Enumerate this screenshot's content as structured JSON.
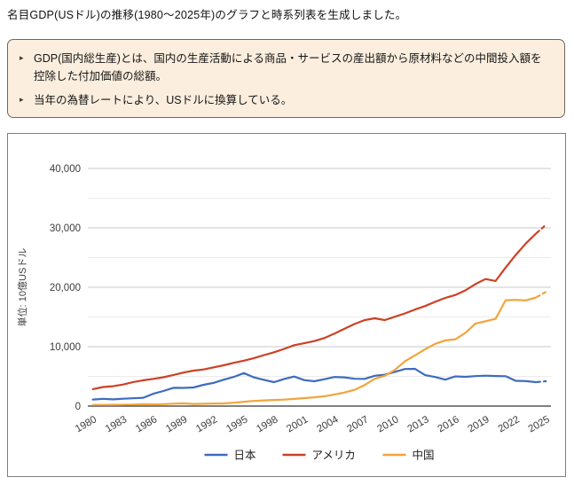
{
  "page": {
    "message": "名目GDP(USドル)の推移(1980〜2025年)のグラフと時系列表を生成しました。"
  },
  "callout": {
    "bullet_glyph": "▸",
    "items": [
      "GDP(国内総生産)とは、国内の生産活動による商品・サービスの産出額から原材料などの中間投入額を控除した付加価値の総額。",
      "当年の為替レートにより、USドルに換算している。"
    ],
    "background_color": "#FBEEDE",
    "border_color": "#6E675A"
  },
  "chart_data": {
    "type": "line",
    "title": "",
    "xlabel": "",
    "ylabel": "単位: 10億USドル",
    "ylim": [
      0,
      40000
    ],
    "y_ticks": [
      0,
      10000,
      20000,
      30000,
      40000
    ],
    "y_tick_labels": [
      "0",
      "10,000",
      "20,000",
      "30,000",
      "40,000"
    ],
    "minor_grid_step": 5000,
    "grid": true,
    "legend_position": "bottom",
    "last_segment_dashed": true,
    "x": [
      1980,
      1981,
      1982,
      1983,
      1984,
      1985,
      1986,
      1987,
      1988,
      1989,
      1990,
      1991,
      1992,
      1993,
      1994,
      1995,
      1996,
      1997,
      1998,
      1999,
      2000,
      2001,
      2002,
      2003,
      2004,
      2005,
      2006,
      2007,
      2008,
      2009,
      2010,
      2011,
      2012,
      2013,
      2014,
      2015,
      2016,
      2017,
      2018,
      2019,
      2020,
      2021,
      2022,
      2023,
      2024,
      2025
    ],
    "x_tick_labels": [
      "1980",
      "1983",
      "1986",
      "1989",
      "1992",
      "1995",
      "1998",
      "2001",
      "2004",
      "2007",
      "2010",
      "2013",
      "2016",
      "2019",
      "2022",
      "2025"
    ],
    "series": [
      {
        "key": "japan",
        "name": "日本",
        "color": "#3D6BBF",
        "values": [
          1105,
          1219,
          1134,
          1243,
          1318,
          1398,
          2079,
          2533,
          3071,
          3054,
          3133,
          3584,
          3908,
          4454,
          4907,
          5546,
          4834,
          4415,
          4033,
          4562,
          4968,
          4374,
          4182,
          4519,
          4893,
          4831,
          4601,
          4579,
          5106,
          5289,
          5759,
          6233,
          6272,
          5212,
          4897,
          4444,
          5004,
          4931,
          5041,
          5118,
          5055,
          5034,
          4256,
          4213,
          4026,
          4186
        ]
      },
      {
        "key": "america",
        "name": "アメリカ",
        "color": "#CC4125",
        "values": [
          2857,
          3207,
          3344,
          3634,
          4038,
          4339,
          4580,
          4855,
          5236,
          5642,
          5963,
          6158,
          6520,
          6859,
          7287,
          7640,
          8073,
          8578,
          9063,
          9631,
          10251,
          10582,
          10936,
          11458,
          12214,
          13037,
          13816,
          14474,
          14770,
          14478,
          15049,
          15600,
          16254,
          16843,
          17551,
          18206,
          18695,
          19477,
          20533,
          21381,
          21060,
          23315,
          25440,
          27361,
          29017,
          30507
        ]
      },
      {
        "key": "china",
        "name": "中国",
        "color": "#F2A43C",
        "values": [
          191,
          196,
          205,
          231,
          260,
          310,
          301,
          327,
          408,
          456,
          361,
          383,
          427,
          445,
          564,
          734,
          864,
          961,
          1029,
          1094,
          1211,
          1339,
          1471,
          1660,
          1955,
          2286,
          2752,
          3550,
          4594,
          5102,
          6087,
          7552,
          8532,
          9570,
          10476,
          11062,
          11233,
          12310,
          13895,
          14280,
          14688,
          17820,
          17882,
          17795,
          18273,
          19232
        ]
      }
    ],
    "colors": {
      "grid_major": "#C9C9C9",
      "grid_minor": "#EBEBEB",
      "baseline": "#333333",
      "tick_text": "#3C3C3C"
    }
  }
}
